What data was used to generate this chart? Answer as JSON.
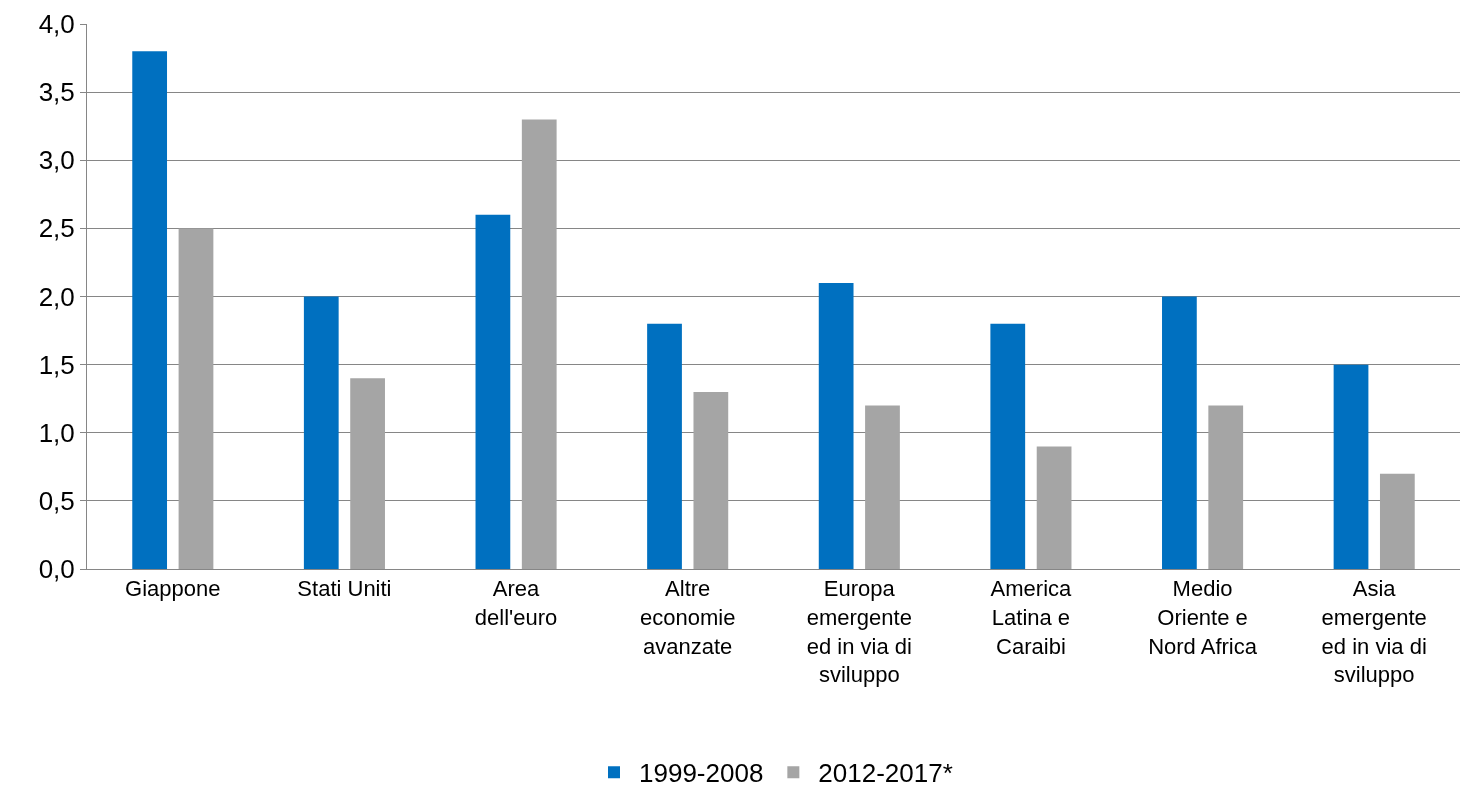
{
  "chart_data": {
    "type": "bar",
    "categories": [
      "Giappone",
      "Stati Uniti",
      "Area\ndell'euro",
      "Altre\neconomie\navanzate",
      "Europa\nemergente\ned in via di\nsviluppo",
      "America\nLatina e\nCaraibi",
      "Medio\nOriente e\nNord Africa",
      "Asia\nemergente\ned in via di\nsviluppo"
    ],
    "series": [
      {
        "name": "1999-2008",
        "color": "#0070c0",
        "values": [
          3.8,
          2.0,
          2.6,
          1.8,
          2.1,
          1.8,
          2.0,
          1.5
        ]
      },
      {
        "name": "2012-2017*",
        "color": "#a5a5a5",
        "values": [
          2.5,
          1.4,
          3.3,
          1.3,
          1.2,
          0.9,
          1.2,
          0.7
        ]
      }
    ],
    "ylim": [
      0,
      4
    ],
    "yticks": [
      {
        "value": 0,
        "label": "0,0"
      },
      {
        "value": 0.5,
        "label": "0,5"
      },
      {
        "value": 1,
        "label": "1,0"
      },
      {
        "value": 1.5,
        "label": "1,5"
      },
      {
        "value": 2,
        "label": "2,0"
      },
      {
        "value": 2.5,
        "label": "2,5"
      },
      {
        "value": 3,
        "label": "3,0"
      },
      {
        "value": 3.5,
        "label": "3,5"
      },
      {
        "value": 4,
        "label": "4,0"
      }
    ],
    "grid": "y",
    "legend": "bottom"
  }
}
